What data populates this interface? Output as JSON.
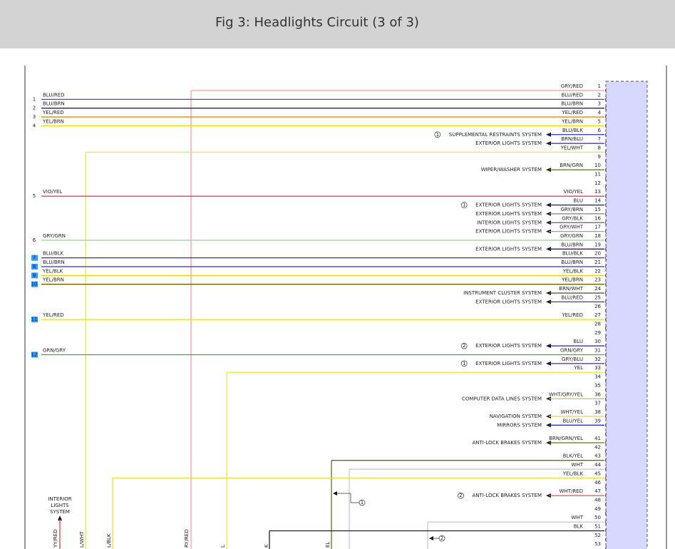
{
  "header": {
    "title": "Fig 3: Headlights Circuit (3 of 3)"
  },
  "pins": [
    {
      "number": "1",
      "wire": "GRY/RED",
      "color": "#f2a0a0"
    },
    {
      "number": "2",
      "wire": "BLU/RED",
      "color": "#6a3ad0",
      "left": {
        "number": "1",
        "label": "BLU/RED"
      }
    },
    {
      "number": "3",
      "wire": "BLU/BRN",
      "color": "#202080",
      "left": {
        "number": "2",
        "label": "BLU/BRN"
      }
    },
    {
      "number": "4",
      "wire": "YEL/RED",
      "color": "#e08a00",
      "left": {
        "number": "3",
        "label": "YEL/RED"
      }
    },
    {
      "number": "5",
      "wire": "YEL/BRN",
      "color": "#e8e000",
      "left": {
        "number": "4",
        "label": "YEL/BRN"
      }
    },
    {
      "number": "6",
      "wire": "BLU/BLK",
      "color": "#3030c0",
      "system": "SUPPLEMENTAL RESTRAINTS SYSTEM",
      "note": "1"
    },
    {
      "number": "7",
      "wire": "BRN/BLU",
      "color": "#303090",
      "system": "EXTERIOR LIGHTS SYSTEM"
    },
    {
      "number": "8",
      "wire": "YEL/WHT",
      "color": "#f0e840"
    },
    {
      "number": "9"
    },
    {
      "number": "10",
      "wire": "BRN/GRN",
      "color": "#4a7a20",
      "system": "WIPER/WASHER SYSTEM"
    },
    {
      "number": "11"
    },
    {
      "number": "12"
    },
    {
      "number": "13",
      "wire": "VIO/YEL",
      "color": "#e04060",
      "left": {
        "number": "5",
        "label": "VIO/YEL"
      }
    },
    {
      "number": "14",
      "wire": "BLU",
      "color": "#2020c0",
      "system": "EXTERIOR LIGHTS SYSTEM",
      "note": "1"
    },
    {
      "number": "15",
      "wire": "GRY/BRN",
      "color": "#808080",
      "system": "EXTERIOR LIGHTS SYSTEM"
    },
    {
      "number": "16",
      "wire": "GRY/BLK",
      "color": "#606060",
      "system": "INTERIOR LIGHTS SYSTEM"
    },
    {
      "number": "17",
      "wire": "GRY/WHT",
      "color": "#a0a0a0",
      "system": "EXTERIOR LIGHTS SYSTEM"
    },
    {
      "number": "18",
      "wire": "GRY/GRN",
      "color": "#a8d0a0",
      "left": {
        "number": "6",
        "label": "GRY/GRN"
      }
    },
    {
      "number": "19",
      "wire": "BLU/BRN",
      "color": "#202080",
      "system": "EXTERIOR LIGHTS SYSTEM"
    },
    {
      "number": "20",
      "wire": "BLU/BLK",
      "color": "#3030c0",
      "left": {
        "number": "7",
        "label": "BLU/BLK",
        "selected": true
      }
    },
    {
      "number": "21",
      "wire": "BLU/BRN",
      "color": "#3030c0",
      "left": {
        "number": "8",
        "label": "BLU/BRN",
        "selected": true
      }
    },
    {
      "number": "22",
      "wire": "YEL/BLK",
      "color": "#e8d800",
      "left": {
        "number": "9",
        "label": "YEL/BLK",
        "selected": true
      }
    },
    {
      "number": "23",
      "wire": "YEL/BRN",
      "color": "#706000",
      "left": {
        "number": "10",
        "label": "YEL/BRN",
        "selected": true
      }
    },
    {
      "number": "24",
      "wire": "BRN/WHT",
      "color": "#705030",
      "system": "INSTRUMENT CLUSTER SYSTEM"
    },
    {
      "number": "25",
      "wire": "BLU/RED",
      "color": "#5030c0",
      "system": "EXTERIOR LIGHTS SYSTEM"
    },
    {
      "number": "26"
    },
    {
      "number": "27",
      "wire": "YEL/RED",
      "color": "#f0e000",
      "left": {
        "number": "11",
        "label": "YEL/RED",
        "selected": true
      }
    },
    {
      "number": "28"
    },
    {
      "number": "29"
    },
    {
      "number": "30",
      "wire": "BLU",
      "color": "#202090",
      "system": "EXTERIOR LIGHTS SYSTEM",
      "note": "2"
    },
    {
      "number": "31",
      "wire": "GRN/GRY",
      "color": "#44aa44",
      "left": {
        "number": "12",
        "label": "GRN/GRY",
        "selected": true
      }
    },
    {
      "number": "32",
      "wire": "GRY/BLU",
      "color": "#3030c0",
      "system": "EXTERIOR LIGHTS SYSTEM",
      "note": "1"
    },
    {
      "number": "33",
      "wire": "YEL",
      "color": "#f0e840"
    },
    {
      "number": "34"
    },
    {
      "number": "35"
    },
    {
      "number": "36",
      "wire": "WHT/GRY/YEL",
      "color": "#c0c060",
      "system": "COMPUTER DATA LINES SYSTEM"
    },
    {
      "number": "37"
    },
    {
      "number": "38",
      "wire": "WHT/YEL",
      "color": "#e0d860",
      "system": "NAVIGATION SYSTEM"
    },
    {
      "number": "39",
      "wire": "BLU/YEL",
      "color": "#3030c0",
      "system": "MIRRORS SYSTEM"
    },
    {},
    {
      "number": "41",
      "wire": "BRN/GRN/YEL",
      "color": "#6a7020",
      "system": "ANTI-LOCK BRAKES SYSTEM"
    },
    {
      "number": "42"
    },
    {
      "number": "43",
      "wire": "BLK/YEL",
      "color": "#6a6a20"
    },
    {
      "number": "44",
      "wire": "WHT",
      "color": "#c8c8c8"
    },
    {
      "number": "45",
      "wire": "YEL/BLK",
      "color": "#e8e040"
    },
    {
      "number": "46"
    },
    {
      "number": "47",
      "wire": "WHT/RED",
      "color": "#e05050",
      "system": "ANTI-LOCK BRAKES SYSTEM",
      "note": "2"
    },
    {
      "number": "48"
    },
    {
      "number": "49"
    },
    {
      "number": "50",
      "wire": "WHT",
      "color": "#c8c8c8"
    },
    {
      "number": "51",
      "wire": "BLK",
      "color": "#202020"
    },
    {
      "number": "52"
    },
    {
      "number": "53"
    }
  ],
  "bottom_labels": [
    "YY/RED",
    "L/WHT",
    "L/BLK",
    "RY/RED",
    "L",
    "K",
    "EL"
  ],
  "interior_label": "INTERIOR LIGHTS SYSTEM",
  "callouts": [
    "1",
    "2"
  ]
}
